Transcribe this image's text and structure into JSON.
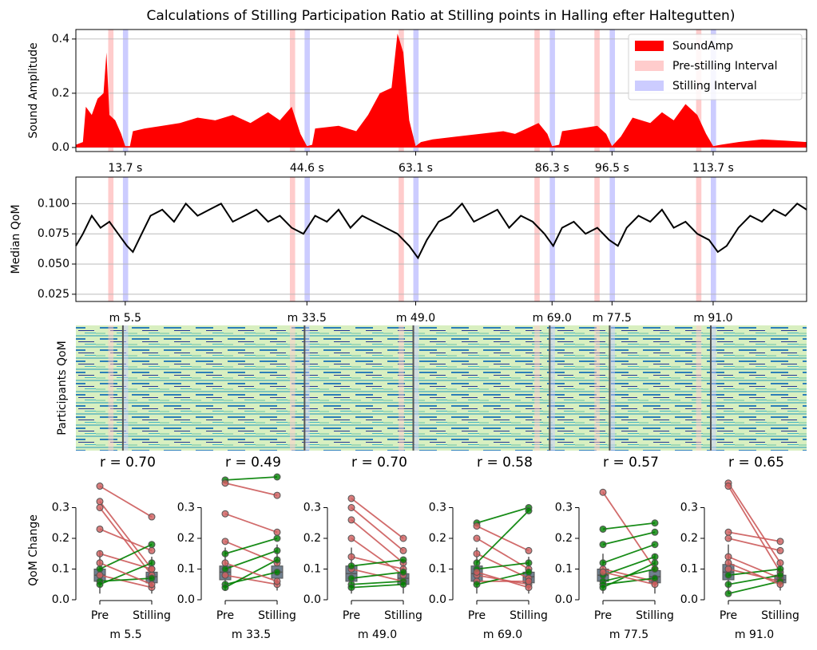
{
  "chart_data": [
    {
      "type": "area",
      "title": "Calculations of Stilling Participation Ratio at Stilling points in Halling efter Haltegutten)",
      "ylabel": "Sound Amplitude",
      "xlim": [
        5.3,
        129.6
      ],
      "ylim": [
        -0.015,
        0.435
      ],
      "yticks": [
        {
          "value": 0,
          "label": "0.0"
        },
        0.2,
        0.4
      ],
      "grid": true,
      "legend": "upper right",
      "xticks": [
        {
          "value": 13.7,
          "label": "13.7 s"
        },
        {
          "value": 44.6,
          "label": "44.6 s"
        },
        {
          "value": 63.1,
          "label": "63.1 s"
        },
        {
          "value": 86.3,
          "label": "86.3 s"
        },
        {
          "value": 96.5,
          "label": "96.5 s"
        },
        {
          "value": 113.7,
          "label": "113.7 s"
        }
      ],
      "pre_interval_name": "Pre-stilling Interval",
      "pre_color": "#ffcccc",
      "stilling_interval_name": "Stilling Interval",
      "stilling_color": "#ccccff",
      "pre_intervals": [
        [
          10.8,
          11.7
        ],
        [
          41.7,
          42.6
        ],
        [
          60.2,
          61.1
        ],
        [
          83.3,
          84.2
        ],
        [
          93.5,
          94.4
        ],
        [
          110.8,
          111.7
        ]
      ],
      "stilling_intervals": [
        [
          13.3,
          14.2
        ],
        [
          44.2,
          45.1
        ],
        [
          62.7,
          63.6
        ],
        [
          85.9,
          86.8
        ],
        [
          96.1,
          97.0
        ],
        [
          113.3,
          114.2
        ]
      ],
      "series": [
        {
          "name": "SoundAmp",
          "color": "#ff0000",
          "x": [
            5.3,
            6.5,
            7,
            8,
            9,
            10,
            10.5,
            11,
            12,
            13,
            13.7,
            14.5,
            15,
            17,
            20,
            23,
            26,
            29,
            32,
            35,
            38,
            40,
            42,
            43.5,
            44.6,
            45.5,
            46,
            50,
            53,
            55,
            57,
            59,
            60,
            61,
            62,
            63.1,
            64,
            66,
            70,
            74,
            78,
            80,
            82,
            84,
            85.5,
            86.3,
            87.5,
            88,
            91,
            94,
            95.5,
            96.5,
            98,
            100,
            103,
            105,
            107,
            109,
            111,
            112.5,
            113.7,
            115,
            118,
            122,
            126,
            129.6
          ],
          "values": [
            0.01,
            0.02,
            0.15,
            0.12,
            0.18,
            0.2,
            0.35,
            0.12,
            0.1,
            0.05,
            0.005,
            0.005,
            0.06,
            0.07,
            0.08,
            0.09,
            0.11,
            0.1,
            0.12,
            0.09,
            0.13,
            0.1,
            0.15,
            0.05,
            0.005,
            0.01,
            0.07,
            0.08,
            0.06,
            0.12,
            0.2,
            0.22,
            0.42,
            0.35,
            0.1,
            0.005,
            0.02,
            0.03,
            0.04,
            0.05,
            0.06,
            0.05,
            0.07,
            0.09,
            0.05,
            0.005,
            0.01,
            0.06,
            0.07,
            0.08,
            0.05,
            0.005,
            0.04,
            0.11,
            0.09,
            0.13,
            0.1,
            0.16,
            0.12,
            0.05,
            0.005,
            0.01,
            0.02,
            0.03,
            0.025,
            0.02
          ]
        }
      ]
    },
    {
      "type": "line",
      "ylabel": "Median QoM",
      "xlim": [
        5.3,
        129.6
      ],
      "ylim": [
        0.019,
        0.122
      ],
      "yticks": [
        0.025,
        {
          "value": 0.05,
          "label": "0.050"
        },
        0.075,
        {
          "value": 0.1,
          "label": "0.100"
        }
      ],
      "grid": true,
      "xticks": [
        {
          "value": 13.7,
          "label": "m 5.5"
        },
        {
          "value": 44.6,
          "label": "m 33.5"
        },
        {
          "value": 63.1,
          "label": "m 49.0"
        },
        {
          "value": 86.3,
          "label": "m 69.0"
        },
        {
          "value": 96.5,
          "label": "m 77.5"
        },
        {
          "value": 113.7,
          "label": "m 91.0"
        }
      ],
      "series": [
        {
          "name": "Median QoM",
          "color": "#000000",
          "x": [
            5.3,
            6.5,
            8,
            9.5,
            11,
            12.5,
            14,
            15,
            16.5,
            18,
            20,
            22,
            24,
            26,
            28,
            30,
            32,
            34,
            36,
            38,
            40,
            42,
            44,
            46,
            48,
            50,
            52,
            54,
            56,
            58,
            60,
            62,
            63.5,
            65,
            67,
            69,
            71,
            73,
            75,
            77,
            79,
            81,
            83,
            85,
            86.5,
            88,
            90,
            92,
            94,
            96,
            97.5,
            99,
            101,
            103,
            105,
            107,
            109,
            111,
            113,
            114.5,
            116,
            118,
            120,
            122,
            124,
            126,
            128,
            129.6
          ],
          "values": [
            0.065,
            0.075,
            0.09,
            0.08,
            0.085,
            0.075,
            0.065,
            0.06,
            0.075,
            0.09,
            0.095,
            0.085,
            0.1,
            0.09,
            0.095,
            0.1,
            0.085,
            0.09,
            0.095,
            0.085,
            0.09,
            0.08,
            0.075,
            0.09,
            0.085,
            0.095,
            0.08,
            0.09,
            0.085,
            0.08,
            0.075,
            0.065,
            0.055,
            0.07,
            0.085,
            0.09,
            0.1,
            0.085,
            0.09,
            0.095,
            0.08,
            0.09,
            0.085,
            0.075,
            0.065,
            0.08,
            0.085,
            0.075,
            0.08,
            0.07,
            0.065,
            0.08,
            0.09,
            0.085,
            0.095,
            0.08,
            0.085,
            0.075,
            0.07,
            0.06,
            0.065,
            0.08,
            0.09,
            0.085,
            0.095,
            0.09,
            0.1,
            0.095
          ]
        }
      ]
    },
    {
      "type": "heatmap",
      "ylabel": "Participants QoM"
    },
    {
      "type": "box",
      "title": "r = 0.70",
      "ylabel": "QoM Change",
      "xlabel": "m 5.5",
      "categories": [
        "Pre",
        "Stilling"
      ],
      "ylim": [
        0,
        0.4
      ],
      "yticks": [
        {
          "value": 0,
          "label": "0.0"
        },
        0.1,
        0.2,
        0.3
      ],
      "up_color": "#008000",
      "down_color": "#cd5c5c",
      "box_color": "#708090",
      "pre": [
        0.37,
        0.32,
        0.3,
        0.23,
        0.15,
        0.1,
        0.08,
        0.06,
        0.05,
        0.12
      ],
      "stilling": [
        0.27,
        0.1,
        0.08,
        0.16,
        0.1,
        0.18,
        0.04,
        0.07,
        0.12,
        0.05
      ],
      "boxes": [
        {
          "whislo": 0.02,
          "q1": 0.06,
          "median": 0.08,
          "q3": 0.1,
          "whishi": 0.16
        },
        {
          "whislo": 0.02,
          "q1": 0.055,
          "median": 0.075,
          "q3": 0.09,
          "whishi": 0.14
        }
      ]
    },
    {
      "type": "box",
      "title": "r = 0.49",
      "xlabel": "m 33.5",
      "categories": [
        "Pre",
        "Stilling"
      ],
      "ylim": [
        0,
        0.4
      ],
      "yticks": [
        {
          "value": 0,
          "label": "0.0"
        },
        0.1,
        0.2,
        0.3
      ],
      "up_color": "#008000",
      "down_color": "#cd5c5c",
      "box_color": "#708090",
      "pre": [
        0.39,
        0.38,
        0.28,
        0.19,
        0.15,
        0.1,
        0.08,
        0.05,
        0.04,
        0.12
      ],
      "stilling": [
        0.4,
        0.34,
        0.22,
        0.12,
        0.2,
        0.16,
        0.05,
        0.09,
        0.13,
        0.06
      ],
      "boxes": [
        {
          "whislo": 0.03,
          "q1": 0.065,
          "median": 0.09,
          "q3": 0.11,
          "whishi": 0.17
        },
        {
          "whislo": 0.03,
          "q1": 0.07,
          "median": 0.09,
          "q3": 0.11,
          "whishi": 0.18
        }
      ]
    },
    {
      "type": "box",
      "title": "r = 0.70",
      "xlabel": "m 49.0",
      "categories": [
        "Pre",
        "Stilling"
      ],
      "ylim": [
        0,
        0.4
      ],
      "yticks": [
        {
          "value": 0,
          "label": "0.0"
        },
        0.1,
        0.2,
        0.3
      ],
      "up_color": "#008000",
      "down_color": "#cd5c5c",
      "box_color": "#708090",
      "pre": [
        0.33,
        0.3,
        0.26,
        0.2,
        0.14,
        0.1,
        0.07,
        0.05,
        0.04,
        0.11
      ],
      "stilling": [
        0.2,
        0.16,
        0.12,
        0.08,
        0.1,
        0.06,
        0.09,
        0.06,
        0.05,
        0.13
      ],
      "boxes": [
        {
          "whislo": 0.02,
          "q1": 0.06,
          "median": 0.085,
          "q3": 0.11,
          "whishi": 0.17
        },
        {
          "whislo": 0.02,
          "q1": 0.05,
          "median": 0.07,
          "q3": 0.085,
          "whishi": 0.13
        }
      ]
    },
    {
      "type": "box",
      "title": "r = 0.58",
      "xlabel": "m 69.0",
      "categories": [
        "Pre",
        "Stilling"
      ],
      "ylim": [
        0,
        0.4
      ],
      "yticks": [
        {
          "value": 0,
          "label": "0.0"
        },
        0.1,
        0.2,
        0.3
      ],
      "up_color": "#008000",
      "down_color": "#cd5c5c",
      "box_color": "#708090",
      "pre": [
        0.25,
        0.24,
        0.2,
        0.15,
        0.1,
        0.08,
        0.06,
        0.05,
        0.12,
        0.09
      ],
      "stilling": [
        0.3,
        0.16,
        0.1,
        0.07,
        0.12,
        0.05,
        0.06,
        0.09,
        0.29,
        0.04
      ],
      "boxes": [
        {
          "whislo": 0.02,
          "q1": 0.06,
          "median": 0.085,
          "q3": 0.11,
          "whishi": 0.17
        },
        {
          "whislo": 0.02,
          "q1": 0.055,
          "median": 0.075,
          "q3": 0.09,
          "whishi": 0.14
        }
      ]
    },
    {
      "type": "box",
      "title": "r = 0.57",
      "xlabel": "m 77.5",
      "categories": [
        "Pre",
        "Stilling"
      ],
      "ylim": [
        0,
        0.4
      ],
      "yticks": [
        {
          "value": 0,
          "label": "0.0"
        },
        0.1,
        0.2,
        0.3
      ],
      "up_color": "#008000",
      "down_color": "#cd5c5c",
      "box_color": "#708090",
      "pre": [
        0.35,
        0.23,
        0.18,
        0.12,
        0.1,
        0.08,
        0.06,
        0.05,
        0.04,
        0.09
      ],
      "stilling": [
        0.1,
        0.25,
        0.22,
        0.18,
        0.06,
        0.14,
        0.1,
        0.07,
        0.12,
        0.05
      ],
      "boxes": [
        {
          "whislo": 0.02,
          "q1": 0.06,
          "median": 0.08,
          "q3": 0.1,
          "whishi": 0.15
        },
        {
          "whislo": 0.02,
          "q1": 0.055,
          "median": 0.075,
          "q3": 0.095,
          "whishi": 0.15
        }
      ]
    },
    {
      "type": "box",
      "title": "r = 0.65",
      "xlabel": "m 91.0",
      "categories": [
        "Pre",
        "Stilling"
      ],
      "ylim": [
        0,
        0.4
      ],
      "yticks": [
        {
          "value": 0,
          "label": "0.0"
        },
        0.1,
        0.2,
        0.3
      ],
      "up_color": "#008000",
      "down_color": "#cd5c5c",
      "box_color": "#708090",
      "pre": [
        0.38,
        0.37,
        0.22,
        0.2,
        0.14,
        0.1,
        0.08,
        0.05,
        0.02,
        0.12
      ],
      "stilling": [
        0.12,
        0.09,
        0.19,
        0.16,
        0.07,
        0.06,
        0.1,
        0.08,
        0.06,
        0.05
      ],
      "boxes": [
        {
          "whislo": 0.02,
          "q1": 0.065,
          "median": 0.09,
          "q3": 0.115,
          "whishi": 0.18
        },
        {
          "whislo": 0.03,
          "q1": 0.055,
          "median": 0.065,
          "q3": 0.08,
          "whishi": 0.12
        }
      ]
    }
  ]
}
